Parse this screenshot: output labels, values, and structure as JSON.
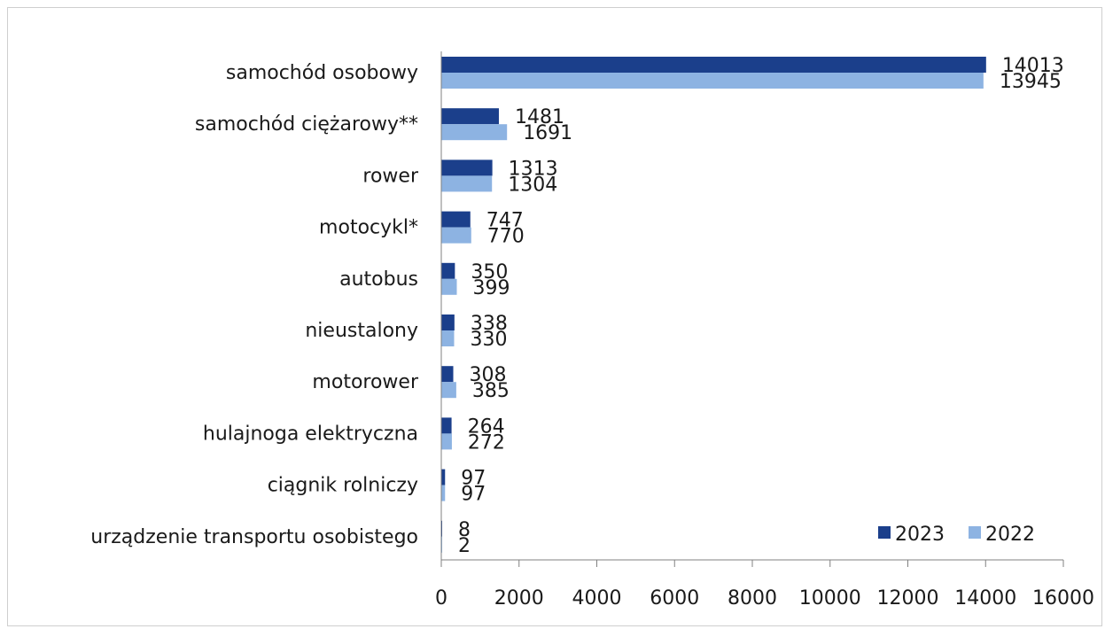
{
  "chart_data": {
    "type": "bar",
    "orientation": "horizontal",
    "categories": [
      "samochód osobowy",
      "samochód ciężarowy**",
      "rower",
      "motocykl*",
      "autobus",
      "nieustalony",
      "motorower",
      "hulajnoga elektryczna",
      "ciągnik rolniczy",
      "urządzenie transportu osobistego"
    ],
    "series": [
      {
        "name": "2023",
        "color": "#1b3f8b",
        "values": [
          14013,
          1481,
          1313,
          747,
          350,
          338,
          308,
          264,
          97,
          8
        ]
      },
      {
        "name": "2022",
        "color": "#8db3e2",
        "values": [
          13945,
          1691,
          1304,
          770,
          399,
          330,
          385,
          272,
          97,
          2
        ]
      }
    ],
    "xlim": [
      0,
      16000
    ],
    "xticks": [
      0,
      2000,
      4000,
      6000,
      8000,
      10000,
      12000,
      14000,
      16000
    ],
    "grid": false,
    "legend_position": "bottom-right",
    "title": "",
    "xlabel": "",
    "ylabel": ""
  }
}
